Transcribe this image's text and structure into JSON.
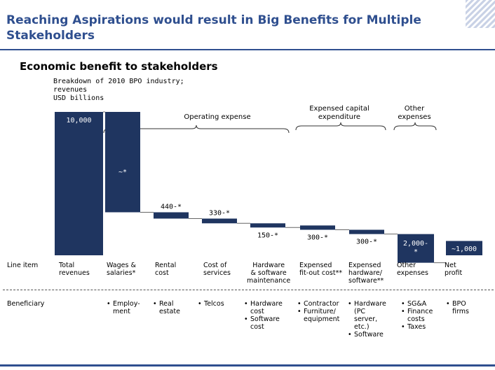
{
  "title": "Reaching Aspirations would result in Big Benefits for Multiple Stakeholders",
  "subtitle": "Economic benefit to stakeholders",
  "breakdown": "Breakdown of 2010 BPO industry;\nrevenues\nUSD billions",
  "groups": {
    "operating": "Operating expense",
    "capex": "Expensed capital\nexpenditure",
    "other": "Other\nexpenses"
  },
  "row_headers": {
    "line_item": "Line item",
    "beneficiary": "Beneficiary"
  },
  "colors": {
    "bar": "#1f3560",
    "accent": "#2f4f8f"
  },
  "chart_data": {
    "type": "bar",
    "subtype": "waterfall",
    "unit": "USD billions",
    "ylim": [
      0,
      10000
    ],
    "categories": [
      "Total revenues",
      "Wages & salaries*",
      "Rental cost",
      "Cost of services",
      "Hardware & software maintenance",
      "Expensed fit-out cost**",
      "Expensed hardware/ software**",
      "Other expenses",
      "Net profit"
    ],
    "values": [
      10000,
      7000,
      440,
      330,
      150,
      300,
      300,
      2000,
      1000
    ],
    "data_labels": [
      "10,000",
      "~*",
      "440-*",
      "330-*",
      "150-*",
      "300-*",
      "300-*",
      "2,000-\n*",
      "~1,000"
    ]
  },
  "categories_display": [
    "Total\nrevenues",
    "Wages &\nsalaries*",
    "Rental\ncost",
    "Cost of\nservices",
    "Hardware\n& software\nmaintenance",
    "Expensed\nfit-out cost**",
    "Expensed\nhardware/\nsoftware**",
    "Other\nexpenses",
    "Net\nprofit"
  ],
  "beneficiaries": [
    [],
    [
      "Employ-\nment"
    ],
    [
      "Real\nestate"
    ],
    [
      "Telcos"
    ],
    [
      "Hardware\ncost",
      "Software\ncost"
    ],
    [
      "Contractor",
      "Furniture/\nequipment"
    ],
    [
      "Hardware\n(PC\nserver,\netc.)",
      "Software"
    ],
    [
      "SG&A",
      "Finance\ncosts",
      "Taxes"
    ],
    [
      "BPO\nfirms"
    ]
  ]
}
